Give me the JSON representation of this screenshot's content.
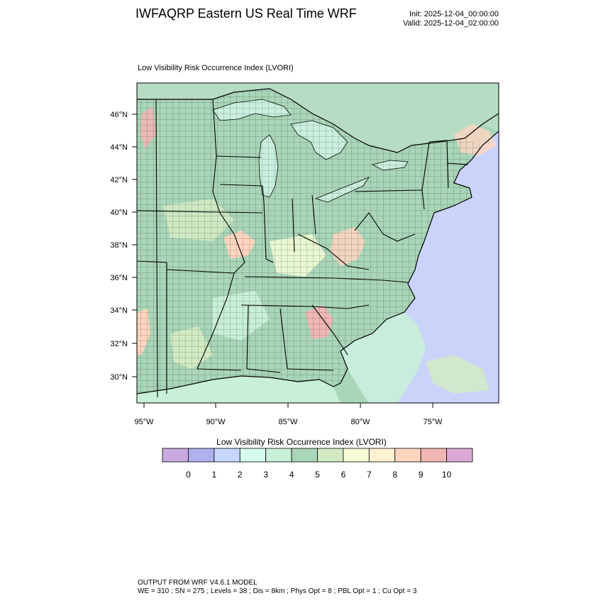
{
  "header": {
    "title": "IWFAQRP Eastern US Real Time WRF",
    "init": "Init: 2025-12-04_00:00:00",
    "valid": "Valid: 2025-12-04_02:00:00"
  },
  "map": {
    "title": "Low Visibility Risk Occurrence Index   (LVORI)",
    "lat_labels": [
      "46°N",
      "44°N",
      "42°N",
      "40°N",
      "38°N",
      "36°N",
      "34°N",
      "32°N",
      "30°N"
    ],
    "lon_labels": [
      "95°W",
      "90°W",
      "85°W",
      "80°W",
      "75°W"
    ],
    "colors": {
      "land_base": "#a9d6b8",
      "ocean": "#cad4fb",
      "lake": "#c9efdd",
      "border": "#000000"
    }
  },
  "colorbar": {
    "title": "Low Visibility Risk Occurrence Index  (LVORI)",
    "tick_labels": [
      "0",
      "1",
      "2",
      "3",
      "4",
      "5",
      "6",
      "7",
      "8",
      "9",
      "10"
    ],
    "levels": [
      0,
      1,
      2,
      3,
      4,
      5,
      6,
      7,
      8,
      9,
      10
    ],
    "colors": [
      "#c8a8de",
      "#b0b0ee",
      "#c6d6fc",
      "#d6fbf1",
      "#c8efd8",
      "#a9d6b8",
      "#d2ebc3",
      "#f4fdd6",
      "#fff2d2",
      "#ffd5c0",
      "#f0b7b5",
      "#dca8d3"
    ]
  },
  "footer": {
    "line1": "OUTPUT FROM WRF V4.6.1 MODEL",
    "line2": "WE = 310 ; SN = 275 ; Levels = 38 ; Dis = 8km ; Phys Opt = 8 ; PBL Opt = 1 ; Cu Opt = 3"
  }
}
